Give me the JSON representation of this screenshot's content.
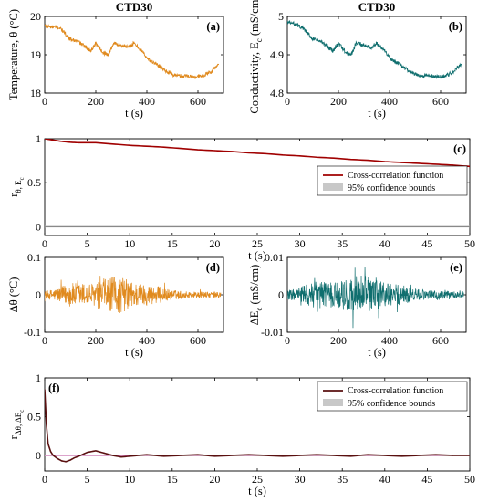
{
  "colors": {
    "temperature": "#E08A1E",
    "conductivity": "#0F6E6E",
    "xcorr_c": "#A00000",
    "xcorr_f": "#5A1010",
    "confidence_fill": "#C8C8C8",
    "zero_line_f": "#E070C0"
  },
  "chart_data": [
    {
      "id": "a",
      "panel_label": "(a)",
      "type": "line",
      "title": "CTD30",
      "xlabel": "t (s)",
      "ylabel": "Temperature, θ (°C)",
      "xlim": [
        0,
        700
      ],
      "ylim": [
        18,
        20
      ],
      "xticks": [
        0,
        200,
        400,
        600
      ],
      "yticks": [
        18,
        19,
        20
      ],
      "series": [
        {
          "color": "temperature",
          "x": [
            0,
            30,
            60,
            80,
            100,
            130,
            160,
            180,
            200,
            230,
            250,
            270,
            300,
            330,
            350,
            380,
            410,
            440,
            470,
            500,
            530,
            560,
            590,
            620,
            650,
            680
          ],
          "y": [
            19.75,
            19.72,
            19.7,
            19.55,
            19.4,
            19.35,
            19.2,
            19.1,
            19.3,
            19.05,
            19.0,
            19.3,
            19.25,
            19.2,
            19.3,
            19.1,
            18.85,
            18.75,
            18.6,
            18.48,
            18.45,
            18.45,
            18.42,
            18.45,
            18.55,
            18.75
          ]
        }
      ]
    },
    {
      "id": "b",
      "panel_label": "(b)",
      "type": "line",
      "title": "CTD30",
      "xlabel": "t (s)",
      "ylabel": "Conductivity, E",
      "ylabel_sub": "c",
      "ylabel_unit": "(mS/cm)",
      "xlim": [
        0,
        700
      ],
      "ylim": [
        4.8,
        5
      ],
      "xticks": [
        0,
        200,
        400,
        600
      ],
      "yticks": [
        4.8,
        4.9,
        5
      ],
      "series": [
        {
          "color": "conductivity",
          "x": [
            0,
            30,
            60,
            80,
            100,
            130,
            160,
            180,
            200,
            230,
            250,
            270,
            300,
            330,
            350,
            380,
            410,
            440,
            470,
            500,
            530,
            560,
            590,
            620,
            650,
            680
          ],
          "y": [
            4.985,
            4.98,
            4.97,
            4.955,
            4.94,
            4.935,
            4.92,
            4.91,
            4.93,
            4.905,
            4.9,
            4.93,
            4.925,
            4.92,
            4.93,
            4.91,
            4.885,
            4.875,
            4.86,
            4.848,
            4.845,
            4.845,
            4.842,
            4.845,
            4.855,
            4.875
          ]
        }
      ]
    },
    {
      "id": "c",
      "panel_label": "(c)",
      "type": "line",
      "xlabel": "t (s)",
      "ylabel": "r",
      "ylabel_sub": "θ, E",
      "ylabel_subsub": "c",
      "xlim": [
        0,
        50
      ],
      "ylim": [
        -0.1,
        1
      ],
      "xticks": [
        0,
        5,
        10,
        15,
        20,
        25,
        30,
        35,
        40,
        45,
        50
      ],
      "yticks": [
        0,
        0.5,
        1
      ],
      "legend": {
        "placement": "right",
        "entries": [
          "Cross-correlation function",
          "95% confidence bounds"
        ]
      },
      "series": [
        {
          "name": "Cross-correlation function",
          "color": "xcorr_c",
          "x": [
            0,
            1,
            2,
            3,
            4,
            5,
            6,
            8,
            10,
            12,
            14,
            16,
            18,
            20,
            22,
            24,
            26,
            28,
            30,
            32,
            34,
            36,
            38,
            40,
            42,
            44,
            46,
            48,
            50
          ],
          "y": [
            1.0,
            0.985,
            0.97,
            0.96,
            0.955,
            0.955,
            0.955,
            0.94,
            0.925,
            0.915,
            0.905,
            0.89,
            0.875,
            0.865,
            0.855,
            0.84,
            0.83,
            0.815,
            0.805,
            0.79,
            0.78,
            0.765,
            0.755,
            0.74,
            0.73,
            0.72,
            0.71,
            0.7,
            0.685
          ]
        }
      ],
      "confidence_bounds": [
        -0.008,
        0.008
      ]
    },
    {
      "id": "d",
      "panel_label": "(d)",
      "type": "line",
      "xlabel": "t (s)",
      "ylabel": "Δθ (°C)",
      "xlim": [
        0,
        700
      ],
      "ylim": [
        -0.1,
        0.1
      ],
      "xticks": [
        0,
        200,
        400,
        600
      ],
      "yticks": [
        -0.1,
        0,
        0.1
      ],
      "series": [
        {
          "color": "temperature",
          "x": [
            0,
            690
          ],
          "y": [
            0,
            0
          ],
          "amplitude": [
            0.01,
            0.018,
            0.032,
            0.032,
            0.03,
            0.045,
            0.05,
            0.035,
            0.028,
            0.024,
            0.014,
            0.01,
            0.009,
            0.008,
            0.008
          ]
        }
      ]
    },
    {
      "id": "e",
      "panel_label": "(e)",
      "type": "line",
      "xlabel": "t (s)",
      "ylabel": "ΔE",
      "ylabel_sub": "c",
      "ylabel_unit": "(mS/cm)",
      "xlim": [
        0,
        700
      ],
      "ylim": [
        -0.01,
        0.01
      ],
      "xticks": [
        0,
        200,
        400,
        600
      ],
      "yticks": [
        -0.01,
        0,
        0.01
      ],
      "series": [
        {
          "color": "conductivity",
          "x": [
            0,
            690
          ],
          "y": [
            0,
            0
          ],
          "amplitude": [
            0.0012,
            0.002,
            0.0035,
            0.0036,
            0.0034,
            0.0048,
            0.0055,
            0.004,
            0.0032,
            0.0028,
            0.0018,
            0.0012,
            0.0012,
            0.001,
            0.0009
          ]
        }
      ]
    },
    {
      "id": "f",
      "panel_label": "(f)",
      "type": "line",
      "xlabel": "t (s)",
      "ylabel": "r",
      "ylabel_sub": "Δθ, ΔE",
      "ylabel_subsub": "c",
      "xlim": [
        0,
        50
      ],
      "ylim": [
        -0.2,
        1
      ],
      "xticks": [
        0,
        5,
        10,
        15,
        20,
        25,
        30,
        35,
        40,
        45,
        50
      ],
      "yticks": [
        0,
        0.5,
        1
      ],
      "legend": {
        "placement": "top-right",
        "entries": [
          "Cross-correlation function",
          "95% confidence bounds"
        ]
      },
      "series": [
        {
          "name": "Cross-correlation function",
          "color": "xcorr_f",
          "x": [
            0,
            0.2,
            0.4,
            0.7,
            1,
            1.5,
            2,
            2.5,
            3,
            3.5,
            4,
            5,
            6,
            7,
            8,
            9,
            10,
            12,
            14,
            16,
            18,
            20,
            22,
            24,
            26,
            28,
            30,
            32,
            34,
            36,
            38,
            40,
            42,
            44,
            46,
            48,
            50
          ],
          "y": [
            0.85,
            0.4,
            0.15,
            0.05,
            0.0,
            -0.04,
            -0.07,
            -0.08,
            -0.06,
            -0.03,
            -0.01,
            0.04,
            0.06,
            0.03,
            0.0,
            -0.02,
            -0.01,
            0.01,
            -0.01,
            0.0,
            0.01,
            -0.01,
            0.0,
            0.01,
            0.0,
            -0.01,
            0.0,
            0.01,
            0.0,
            -0.01,
            0.01,
            0.0,
            -0.01,
            0.0,
            0.01,
            0.0,
            0.0
          ]
        }
      ],
      "confidence_bounds": [
        -0.01,
        0.01
      ]
    }
  ]
}
